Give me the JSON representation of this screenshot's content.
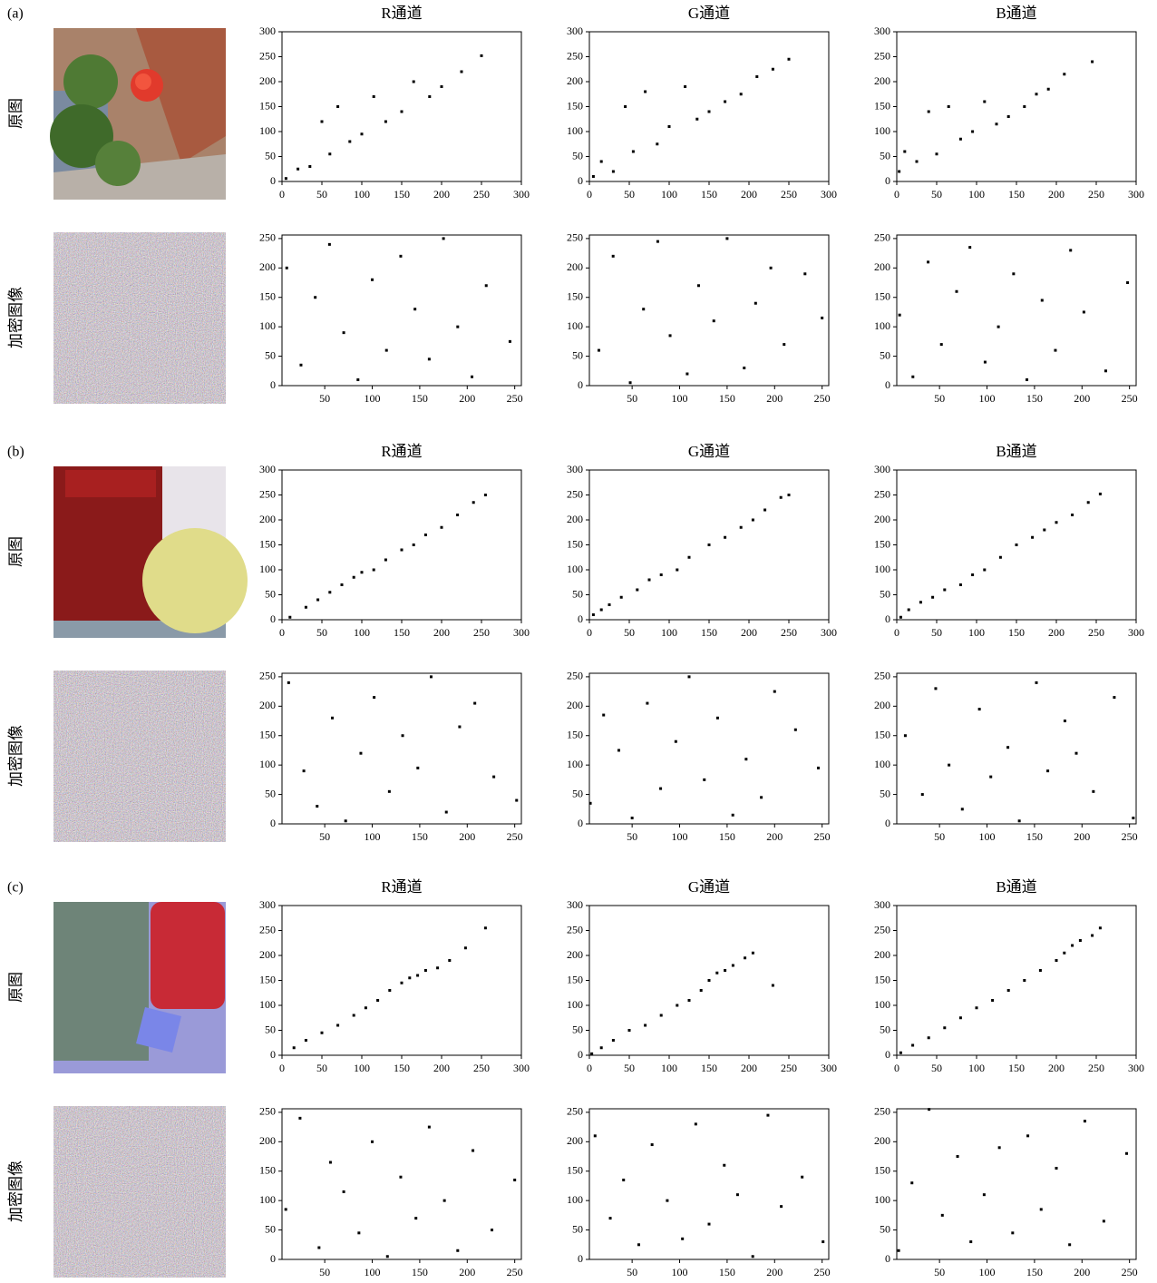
{
  "groups": [
    {
      "label": "(a)",
      "rows": [
        "原图",
        "加密图像"
      ]
    },
    {
      "label": "(b)",
      "rows": [
        "原图",
        "加密图像"
      ]
    },
    {
      "label": "(c)",
      "rows": [
        "原图",
        "加密图像"
      ]
    }
  ],
  "chart_data": [
    {
      "type": "scatter",
      "title": "R通道",
      "color": "#000000",
      "xlim": [
        0,
        300
      ],
      "ylim": [
        0,
        300
      ],
      "xticks": [
        0,
        50,
        100,
        150,
        200,
        250,
        300
      ],
      "yticks": [
        0,
        50,
        100,
        150,
        200,
        250,
        300
      ],
      "x": [
        5,
        20,
        35,
        50,
        60,
        70,
        85,
        100,
        115,
        130,
        150,
        165,
        185,
        200,
        225,
        250
      ],
      "values": [
        6,
        25,
        30,
        120,
        55,
        150,
        80,
        95,
        170,
        120,
        140,
        200,
        170,
        190,
        220,
        252
      ]
    },
    {
      "type": "scatter",
      "title": "G通道",
      "color": "#000000",
      "xlim": [
        0,
        300
      ],
      "ylim": [
        0,
        300
      ],
      "xticks": [
        0,
        50,
        100,
        150,
        200,
        250,
        300
      ],
      "yticks": [
        0,
        50,
        100,
        150,
        200,
        250,
        300
      ],
      "x": [
        5,
        15,
        30,
        45,
        55,
        70,
        85,
        100,
        120,
        135,
        150,
        170,
        190,
        210,
        230,
        250
      ],
      "values": [
        10,
        40,
        20,
        150,
        60,
        180,
        75,
        110,
        190,
        125,
        140,
        160,
        175,
        210,
        225,
        245
      ]
    },
    {
      "type": "scatter",
      "title": "B通道",
      "color": "#000000",
      "xlim": [
        0,
        300
      ],
      "ylim": [
        0,
        300
      ],
      "xticks": [
        0,
        50,
        100,
        150,
        200,
        250,
        300
      ],
      "yticks": [
        0,
        50,
        100,
        150,
        200,
        250,
        300
      ],
      "x": [
        3,
        10,
        25,
        40,
        50,
        65,
        80,
        95,
        110,
        125,
        140,
        160,
        175,
        190,
        210,
        245
      ],
      "values": [
        20,
        60,
        40,
        140,
        55,
        150,
        85,
        100,
        160,
        115,
        130,
        150,
        175,
        185,
        215,
        240
      ]
    },
    {
      "type": "scatter",
      "color": "#000000",
      "xlim": [
        5,
        257
      ],
      "ylim": [
        0,
        256
      ],
      "xticks": [
        50,
        100,
        150,
        200,
        250
      ],
      "yticks": [
        0,
        50,
        100,
        150,
        200,
        250
      ],
      "x": [
        10,
        25,
        40,
        55,
        70,
        85,
        100,
        115,
        130,
        145,
        160,
        175,
        190,
        205,
        220,
        245
      ],
      "values": [
        200,
        35,
        150,
        240,
        90,
        10,
        180,
        60,
        220,
        130,
        45,
        250,
        100,
        15,
        170,
        75
      ]
    },
    {
      "type": "scatter",
      "color": "#000000",
      "xlim": [
        5,
        257
      ],
      "ylim": [
        0,
        256
      ],
      "xticks": [
        50,
        100,
        150,
        200,
        250
      ],
      "yticks": [
        0,
        50,
        100,
        150,
        200,
        250
      ],
      "x": [
        15,
        30,
        48,
        62,
        77,
        90,
        108,
        120,
        136,
        150,
        168,
        180,
        196,
        210,
        232,
        250
      ],
      "values": [
        60,
        220,
        5,
        130,
        245,
        85,
        20,
        170,
        110,
        250,
        30,
        140,
        200,
        70,
        190,
        115
      ]
    },
    {
      "type": "scatter",
      "color": "#000000",
      "xlim": [
        5,
        257
      ],
      "ylim": [
        0,
        256
      ],
      "xticks": [
        50,
        100,
        150,
        200,
        250
      ],
      "yticks": [
        0,
        50,
        100,
        150,
        200,
        250
      ],
      "x": [
        8,
        22,
        38,
        52,
        68,
        82,
        98,
        112,
        128,
        142,
        158,
        172,
        188,
        202,
        225,
        248
      ],
      "values": [
        120,
        15,
        210,
        70,
        160,
        235,
        40,
        100,
        190,
        10,
        145,
        60,
        230,
        125,
        25,
        175
      ]
    },
    {
      "type": "scatter",
      "title": "R通道",
      "color": "#000000",
      "xlim": [
        0,
        300
      ],
      "ylim": [
        0,
        300
      ],
      "xticks": [
        0,
        50,
        100,
        150,
        200,
        250,
        300
      ],
      "yticks": [
        0,
        50,
        100,
        150,
        200,
        250,
        300
      ],
      "x": [
        10,
        30,
        45,
        60,
        75,
        90,
        100,
        115,
        130,
        150,
        165,
        180,
        200,
        220,
        240,
        255
      ],
      "values": [
        5,
        25,
        40,
        55,
        70,
        85,
        95,
        100,
        120,
        140,
        150,
        170,
        185,
        210,
        235,
        250
      ]
    },
    {
      "type": "scatter",
      "title": "G通道",
      "color": "#000000",
      "xlim": [
        0,
        300
      ],
      "ylim": [
        0,
        300
      ],
      "xticks": [
        0,
        50,
        100,
        150,
        200,
        250,
        300
      ],
      "yticks": [
        0,
        50,
        100,
        150,
        200,
        250,
        300
      ],
      "x": [
        5,
        15,
        25,
        40,
        60,
        75,
        90,
        110,
        125,
        150,
        170,
        190,
        205,
        220,
        240,
        250
      ],
      "values": [
        10,
        20,
        30,
        45,
        60,
        80,
        90,
        100,
        125,
        150,
        165,
        185,
        200,
        220,
        245,
        250
      ]
    },
    {
      "type": "scatter",
      "title": "B通道",
      "color": "#000000",
      "xlim": [
        0,
        300
      ],
      "ylim": [
        0,
        300
      ],
      "xticks": [
        0,
        50,
        100,
        150,
        200,
        250,
        300
      ],
      "yticks": [
        0,
        50,
        100,
        150,
        200,
        250,
        300
      ],
      "x": [
        5,
        15,
        30,
        45,
        60,
        80,
        95,
        110,
        130,
        150,
        170,
        185,
        200,
        220,
        240,
        255
      ],
      "values": [
        5,
        20,
        35,
        45,
        60,
        70,
        90,
        100,
        125,
        150,
        165,
        180,
        195,
        210,
        235,
        252
      ]
    },
    {
      "type": "scatter",
      "color": "#000000",
      "xlim": [
        5,
        257
      ],
      "ylim": [
        0,
        256
      ],
      "xticks": [
        50,
        100,
        150,
        200,
        250
      ],
      "yticks": [
        0,
        50,
        100,
        150,
        200,
        250
      ],
      "x": [
        12,
        28,
        42,
        58,
        72,
        88,
        102,
        118,
        132,
        148,
        162,
        178,
        192,
        208,
        228,
        252
      ],
      "values": [
        240,
        90,
        30,
        180,
        5,
        120,
        215,
        55,
        150,
        95,
        250,
        20,
        165,
        205,
        80,
        40
      ]
    },
    {
      "type": "scatter",
      "color": "#000000",
      "xlim": [
        5,
        257
      ],
      "ylim": [
        0,
        256
      ],
      "xticks": [
        50,
        100,
        150,
        200,
        250
      ],
      "yticks": [
        0,
        50,
        100,
        150,
        200,
        250
      ],
      "x": [
        6,
        20,
        36,
        50,
        66,
        80,
        96,
        110,
        126,
        140,
        156,
        170,
        186,
        200,
        222,
        246
      ],
      "values": [
        35,
        185,
        125,
        10,
        205,
        60,
        140,
        250,
        75,
        180,
        15,
        110,
        45,
        225,
        160,
        95
      ]
    },
    {
      "type": "scatter",
      "color": "#000000",
      "xlim": [
        5,
        257
      ],
      "ylim": [
        0,
        256
      ],
      "xticks": [
        50,
        100,
        150,
        200,
        250
      ],
      "yticks": [
        0,
        50,
        100,
        150,
        200,
        250
      ],
      "x": [
        14,
        32,
        46,
        60,
        74,
        92,
        104,
        122,
        134,
        152,
        164,
        182,
        194,
        212,
        234,
        254
      ],
      "values": [
        150,
        50,
        230,
        100,
        25,
        195,
        80,
        130,
        5,
        240,
        90,
        175,
        120,
        55,
        215,
        10
      ]
    },
    {
      "type": "scatter",
      "title": "R通道",
      "color": "#000000",
      "xlim": [
        0,
        300
      ],
      "ylim": [
        0,
        300
      ],
      "xticks": [
        0,
        50,
        100,
        150,
        200,
        250,
        300
      ],
      "yticks": [
        0,
        50,
        100,
        150,
        200,
        250,
        300
      ],
      "x": [
        15,
        30,
        50,
        70,
        90,
        105,
        120,
        135,
        150,
        160,
        170,
        180,
        195,
        210,
        230,
        255
      ],
      "values": [
        15,
        30,
        45,
        60,
        80,
        95,
        110,
        130,
        145,
        155,
        160,
        170,
        175,
        190,
        215,
        255
      ]
    },
    {
      "type": "scatter",
      "title": "G通道",
      "color": "#000000",
      "xlim": [
        0,
        300
      ],
      "ylim": [
        0,
        300
      ],
      "xticks": [
        0,
        50,
        100,
        150,
        200,
        250,
        300
      ],
      "yticks": [
        0,
        50,
        100,
        150,
        200,
        250,
        300
      ],
      "x": [
        3,
        15,
        30,
        50,
        70,
        90,
        110,
        125,
        140,
        150,
        160,
        170,
        180,
        195,
        205,
        230
      ],
      "values": [
        3,
        15,
        30,
        50,
        60,
        80,
        100,
        110,
        130,
        150,
        165,
        170,
        180,
        195,
        205,
        140
      ]
    },
    {
      "type": "scatter",
      "title": "B通道",
      "color": "#000000",
      "xlim": [
        0,
        300
      ],
      "ylim": [
        0,
        300
      ],
      "xticks": [
        0,
        50,
        100,
        150,
        200,
        250,
        300
      ],
      "yticks": [
        0,
        50,
        100,
        150,
        200,
        250,
        300
      ],
      "x": [
        5,
        20,
        40,
        60,
        80,
        100,
        120,
        140,
        160,
        180,
        200,
        210,
        220,
        230,
        245,
        255
      ],
      "values": [
        5,
        20,
        35,
        55,
        75,
        95,
        110,
        130,
        150,
        170,
        190,
        205,
        220,
        230,
        240,
        255
      ]
    },
    {
      "type": "scatter",
      "color": "#000000",
      "xlim": [
        5,
        257
      ],
      "ylim": [
        0,
        256
      ],
      "xticks": [
        50,
        100,
        150,
        200,
        250
      ],
      "yticks": [
        0,
        50,
        100,
        150,
        200,
        250
      ],
      "x": [
        9,
        24,
        44,
        56,
        70,
        86,
        100,
        116,
        130,
        146,
        160,
        176,
        190,
        206,
        226,
        250
      ],
      "values": [
        85,
        240,
        20,
        165,
        115,
        45,
        200,
        5,
        140,
        70,
        225,
        100,
        15,
        185,
        50,
        135
      ]
    },
    {
      "type": "scatter",
      "color": "#000000",
      "xlim": [
        5,
        257
      ],
      "ylim": [
        0,
        256
      ],
      "xticks": [
        50,
        100,
        150,
        200,
        250
      ],
      "yticks": [
        0,
        50,
        100,
        150,
        200,
        250
      ],
      "x": [
        11,
        27,
        41,
        57,
        71,
        87,
        103,
        117,
        131,
        147,
        161,
        177,
        193,
        207,
        229,
        251
      ],
      "values": [
        210,
        70,
        135,
        25,
        195,
        100,
        35,
        230,
        60,
        160,
        110,
        5,
        245,
        90,
        140,
        30
      ]
    },
    {
      "type": "scatter",
      "color": "#000000",
      "xlim": [
        5,
        257
      ],
      "ylim": [
        0,
        256
      ],
      "xticks": [
        50,
        100,
        150,
        200,
        250
      ],
      "yticks": [
        0,
        50,
        100,
        150,
        200,
        250
      ],
      "x": [
        7,
        21,
        39,
        53,
        69,
        83,
        97,
        113,
        127,
        143,
        157,
        173,
        187,
        203,
        223,
        247
      ],
      "values": [
        15,
        130,
        255,
        75,
        175,
        30,
        110,
        190,
        45,
        210,
        85,
        155,
        25,
        235,
        65,
        180
      ]
    }
  ]
}
